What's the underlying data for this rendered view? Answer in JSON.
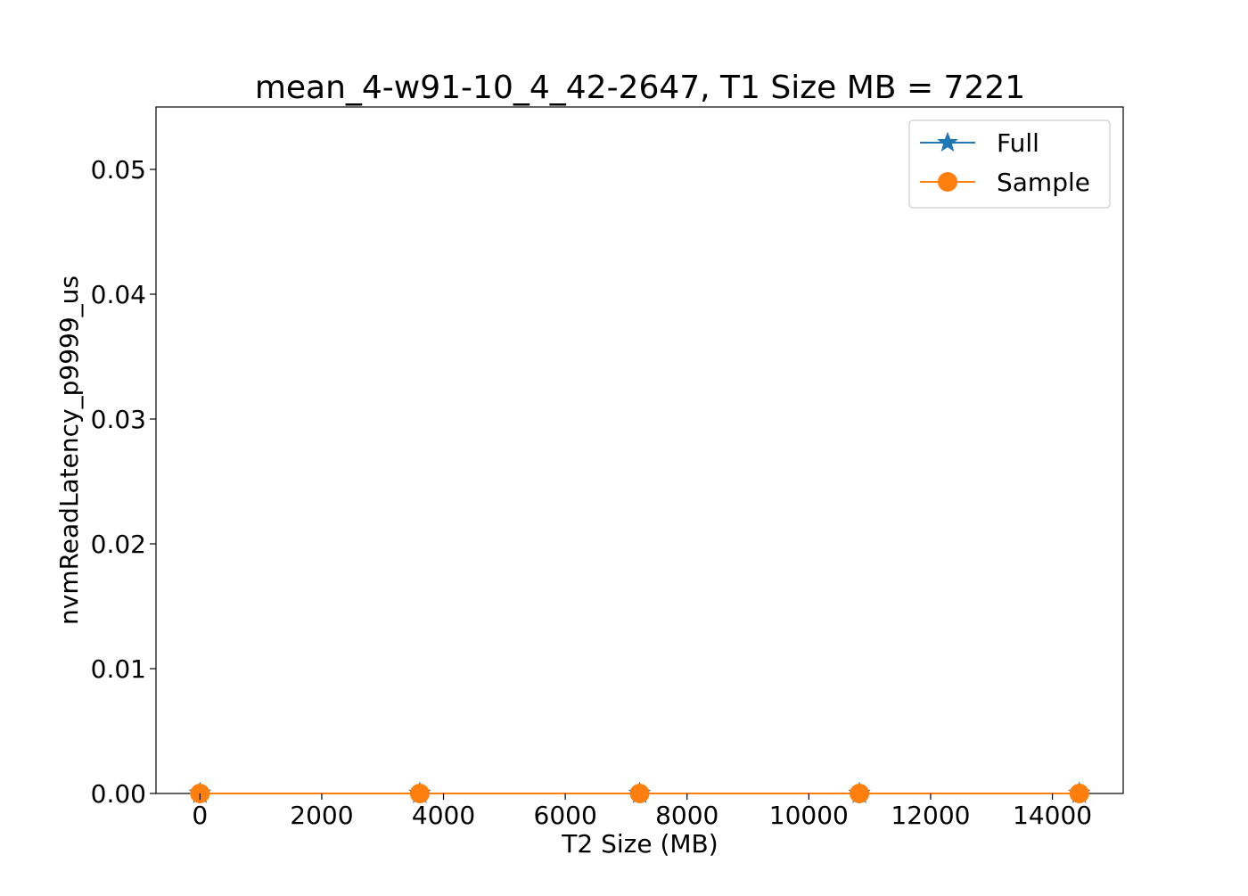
{
  "chart_data": {
    "type": "line",
    "title": "mean_4-w91-10_4_42-2647, T1 Size MB = 7221",
    "xlabel": "T2 Size (MB)",
    "ylabel": "nvmReadLatency_p9999_us",
    "xlim": [
      -722,
      15163
    ],
    "ylim": [
      0,
      0.055
    ],
    "x_ticks": [
      0,
      2000,
      4000,
      6000,
      8000,
      10000,
      12000,
      14000
    ],
    "x_tick_labels": [
      "0",
      "2000",
      "4000",
      "6000",
      "8000",
      "10000",
      "12000",
      "14000"
    ],
    "y_ticks": [
      0,
      0.01,
      0.02,
      0.03,
      0.04,
      0.05
    ],
    "y_tick_labels": [
      "0.00",
      "0.01",
      "0.02",
      "0.03",
      "0.04",
      "0.05"
    ],
    "grid": false,
    "legend_position": "top-right",
    "series": [
      {
        "name": "Full",
        "color": "#1f77b4",
        "marker": "star",
        "x": [
          0,
          3610,
          7221,
          10831,
          14442
        ],
        "y": [
          0,
          0,
          0,
          0,
          0
        ]
      },
      {
        "name": "Sample",
        "color": "#ff7f0e",
        "marker": "circle",
        "x": [
          0,
          3610,
          7221,
          10831,
          14442
        ],
        "y": [
          0,
          0,
          0,
          0,
          0
        ]
      }
    ]
  }
}
